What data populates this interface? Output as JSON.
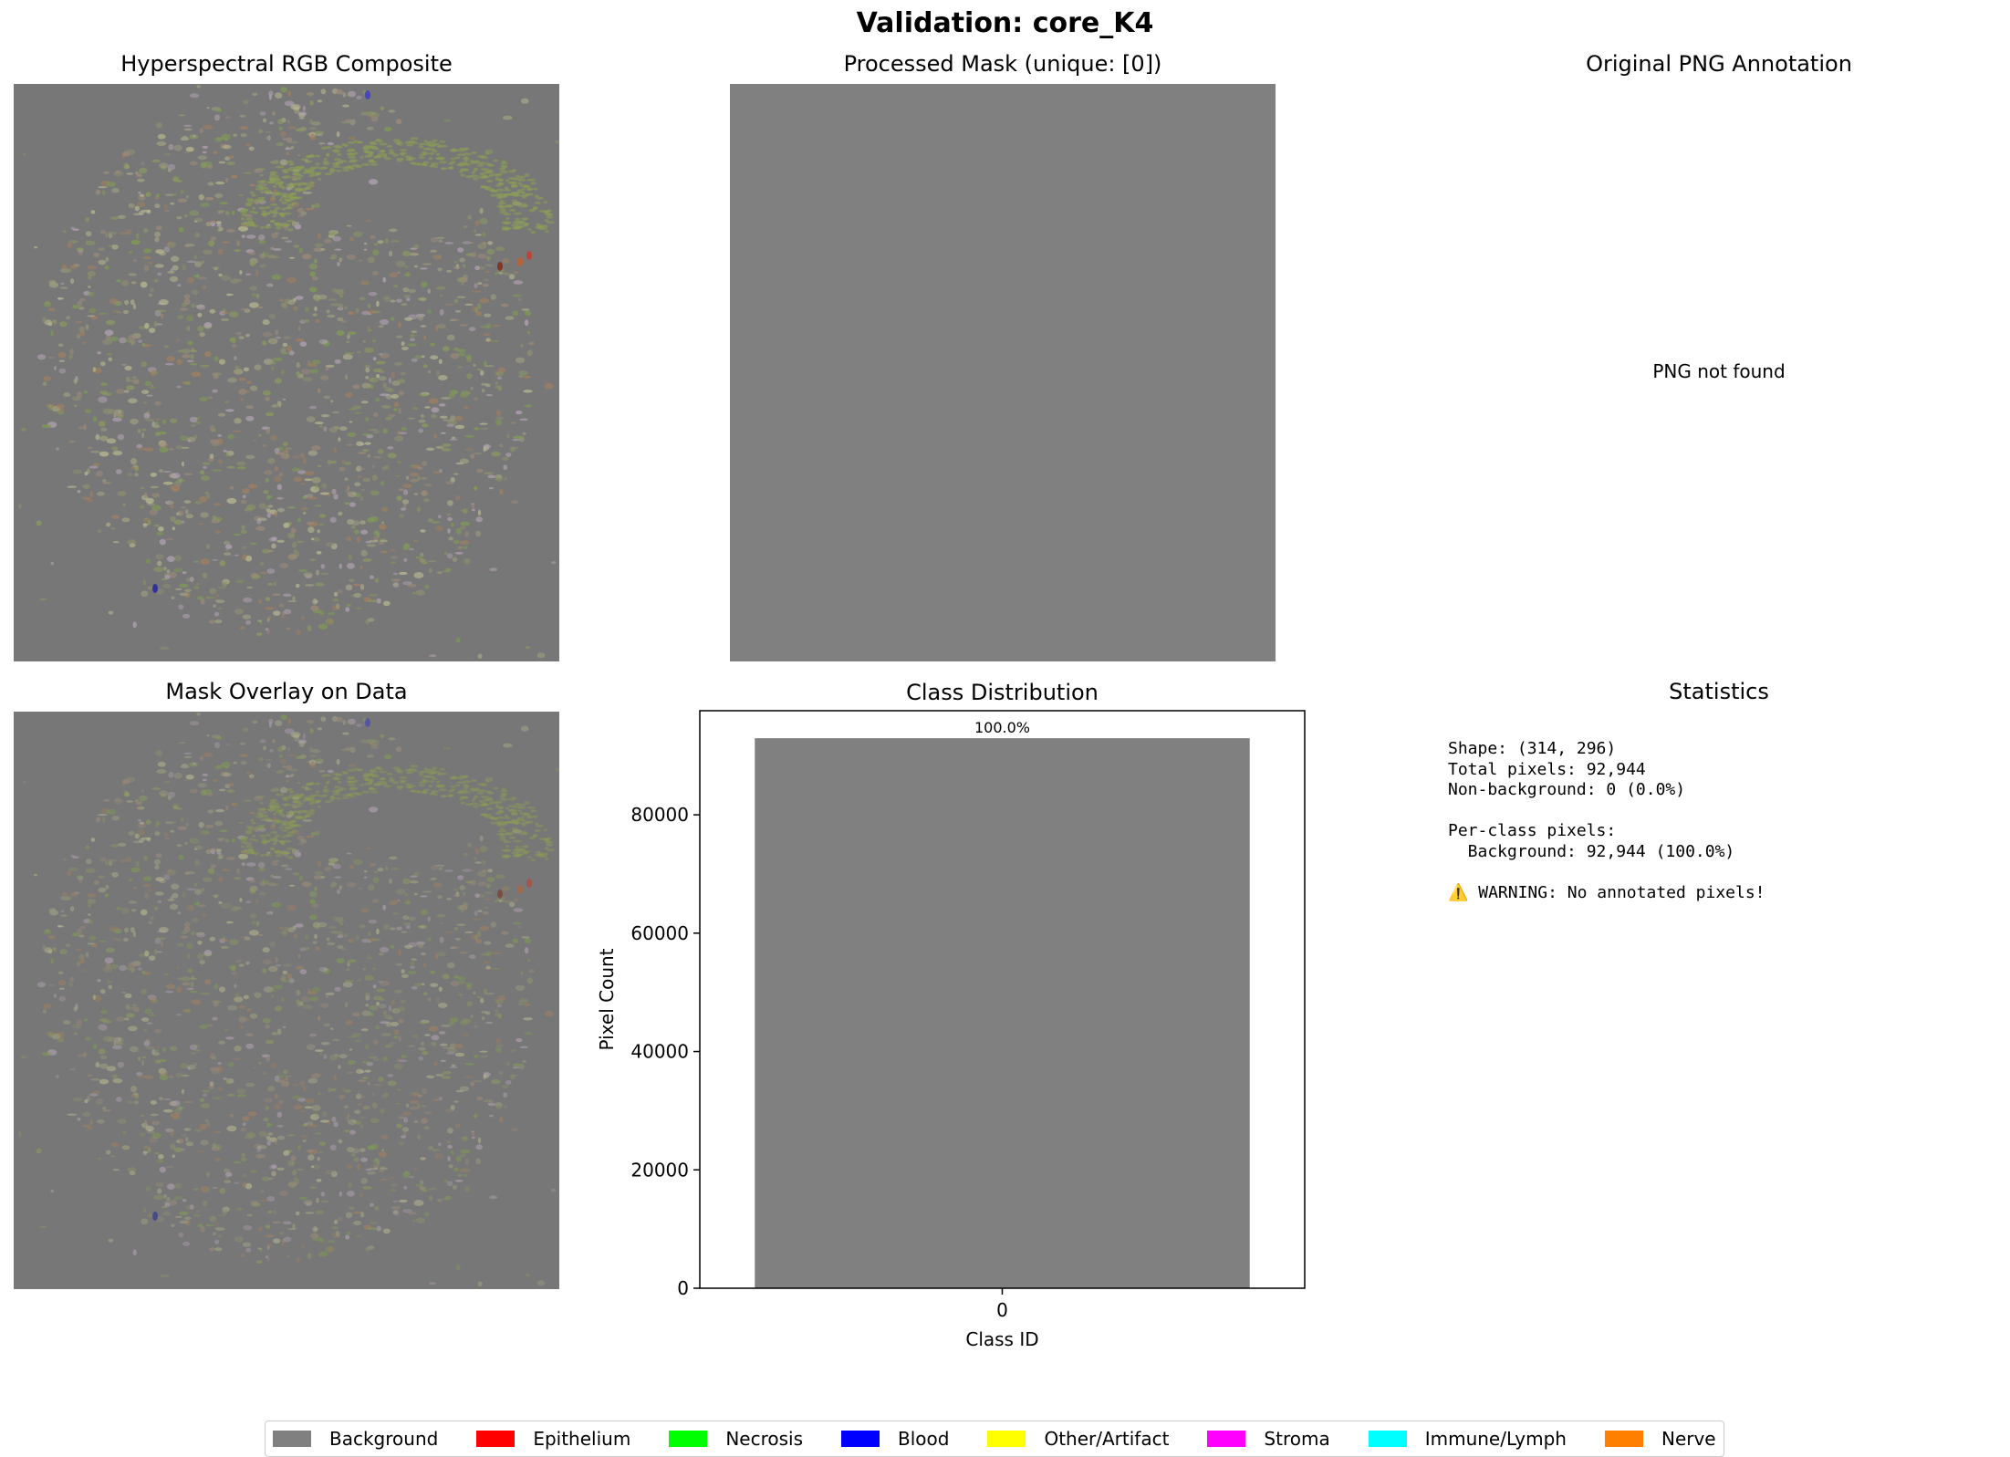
{
  "suptitle": "Validation: core_K4",
  "panels": {
    "rgb_title": "Hyperspectral RGB Composite",
    "mask_title": "Processed Mask (unique: [0])",
    "png_title": "Original PNG Annotation",
    "png_message": "PNG not found",
    "overlay_title": "Mask Overlay on Data",
    "stats_title": "Statistics"
  },
  "stats": {
    "shape": "Shape: (314, 296)",
    "total": "Total pixels: 92,944",
    "nonbg": "Non-background: 0 (0.0%)",
    "perclass_header": "Per-class pixels:",
    "perclass_bg": "  Background: 92,944 (100.0%)",
    "warning": "⚠️ WARNING: No annotated pixels!"
  },
  "colors": {
    "tissue_background": "#777777",
    "mask_background": "#808080"
  },
  "chart_data": {
    "type": "bar",
    "title": "Class Distribution",
    "xlabel": "Class ID",
    "ylabel": "Pixel Count",
    "categories": [
      "0"
    ],
    "values": [
      92944
    ],
    "labels": [
      "100.0%"
    ],
    "colors": [
      "#808080"
    ],
    "ylim": [
      0,
      97591
    ],
    "yticks": [
      0,
      20000,
      40000,
      60000,
      80000
    ],
    "grid": false
  },
  "legend": [
    {
      "label": "Background",
      "color": "#808080"
    },
    {
      "label": "Epithelium",
      "color": "#ff0000"
    },
    {
      "label": "Necrosis",
      "color": "#00ff00"
    },
    {
      "label": "Blood",
      "color": "#0000ff"
    },
    {
      "label": "Other/Artifact",
      "color": "#ffff00"
    },
    {
      "label": "Stroma",
      "color": "#ff00ff"
    },
    {
      "label": "Immune/Lymph",
      "color": "#00ffff"
    },
    {
      "label": "Nerve",
      "color": "#ff8000"
    }
  ]
}
